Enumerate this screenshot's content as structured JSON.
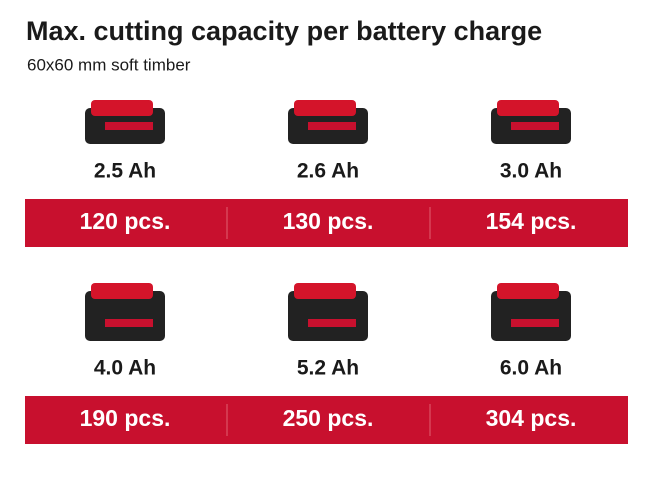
{
  "header": {
    "title": "Max. cutting capacity per battery charge",
    "subtitle": "60x60 mm soft timber"
  },
  "rows": [
    {
      "items": [
        {
          "capacity": "2.5 Ah",
          "cuts": "120 pcs."
        },
        {
          "capacity": "2.6 Ah",
          "cuts": "130 pcs."
        },
        {
          "capacity": "3.0 Ah",
          "cuts": "154 pcs."
        }
      ]
    },
    {
      "items": [
        {
          "capacity": "4.0 Ah",
          "cuts": "190 pcs."
        },
        {
          "capacity": "5.2 Ah",
          "cuts": "250 pcs."
        },
        {
          "capacity": "6.0 Ah",
          "cuts": "304 pcs."
        }
      ]
    }
  ]
}
